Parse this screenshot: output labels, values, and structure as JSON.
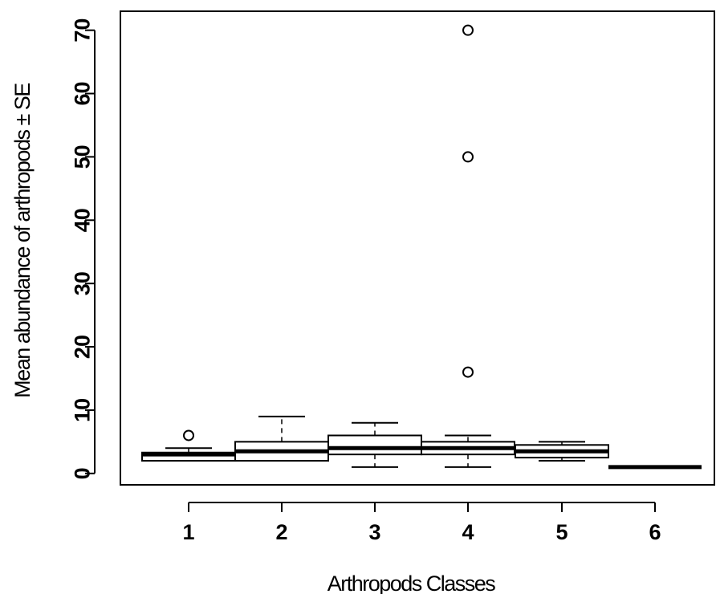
{
  "chart_data": {
    "type": "boxplot",
    "xlabel": "Arthropods Classes",
    "ylabel": "Mean abundance of arthropods ± SE",
    "categories": [
      "1",
      "2",
      "3",
      "4",
      "5",
      "6"
    ],
    "yticks": [
      0,
      10,
      20,
      30,
      40,
      50,
      60,
      70
    ],
    "ytick_labels": [
      "0",
      "10",
      "20",
      "30",
      "40",
      "50",
      "60",
      "70"
    ],
    "ylim": [
      -1.8,
      73
    ],
    "grid": false,
    "legend": "none",
    "boxes": [
      {
        "category": "1",
        "whisker_low": 2,
        "q1": 2,
        "median": 3,
        "q3": 3.3,
        "whisker_high": 4,
        "outliers": [
          6
        ]
      },
      {
        "category": "2",
        "whisker_low": 2,
        "q1": 2,
        "median": 3.5,
        "q3": 5,
        "whisker_high": 9,
        "outliers": []
      },
      {
        "category": "3",
        "whisker_low": 1,
        "q1": 3,
        "median": 4,
        "q3": 6,
        "whisker_high": 8,
        "outliers": []
      },
      {
        "category": "4",
        "whisker_low": 1,
        "q1": 3,
        "median": 4,
        "q3": 5,
        "whisker_high": 6,
        "outliers": [
          16,
          50,
          70
        ]
      },
      {
        "category": "5",
        "whisker_low": 2,
        "q1": 2.5,
        "median": 3.5,
        "q3": 4.5,
        "whisker_high": 5,
        "outliers": []
      },
      {
        "category": "6",
        "whisker_low": 1,
        "q1": 1,
        "median": 1,
        "q3": 1,
        "whisker_high": 1,
        "outliers": []
      }
    ]
  }
}
